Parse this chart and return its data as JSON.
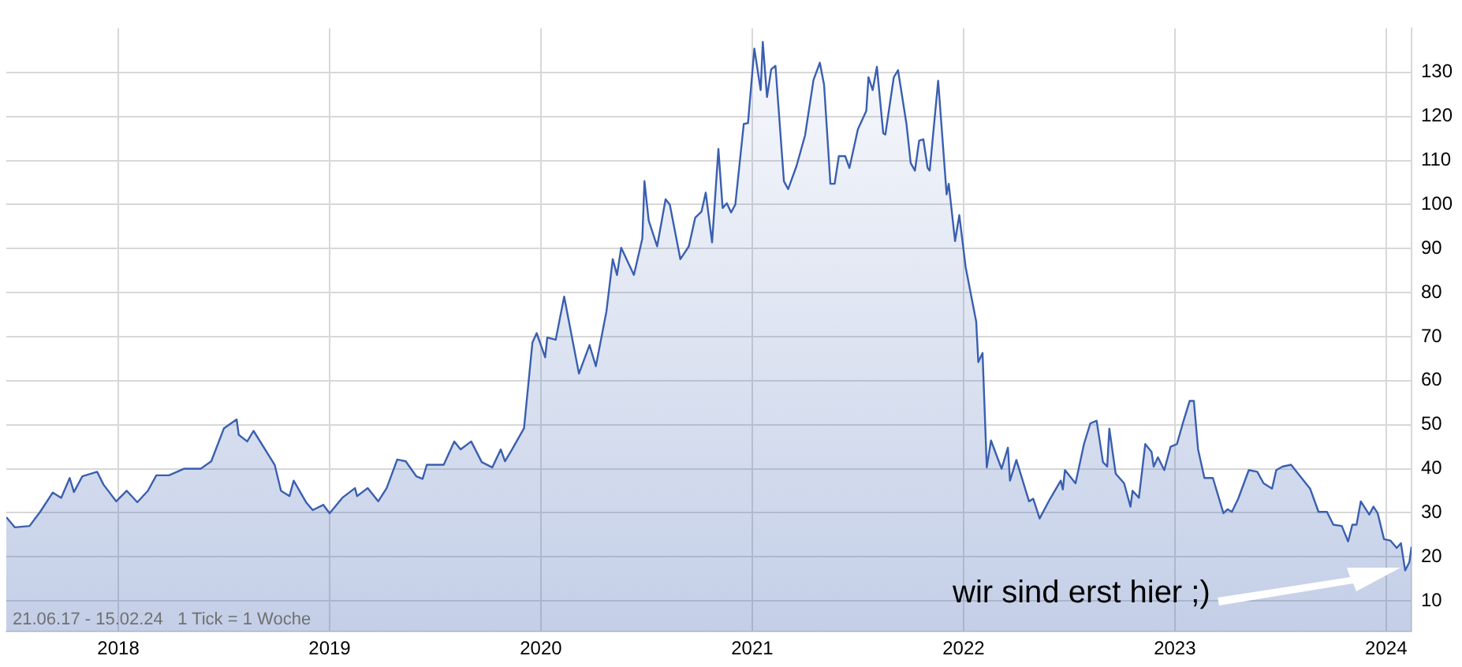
{
  "chart_data": {
    "type": "area",
    "xlim": [
      2017.47,
      2024.12
    ],
    "xticks": [
      2018,
      2019,
      2020,
      2021,
      2022,
      2023,
      2024
    ],
    "ylim": [
      3,
      140
    ],
    "yticks": [
      10,
      20,
      30,
      40,
      50,
      60,
      70,
      80,
      90,
      100,
      110,
      120,
      130
    ],
    "grid": true,
    "legend": false,
    "annotations": [
      "21.06.17 - 15.02.24   1 Tick = 1 Woche",
      "wir sind erst hier ;)"
    ],
    "series": [
      {
        "color": "#3a5fb0",
        "x": [
          2017.47,
          2017.51,
          2017.58,
          2017.63,
          2017.69,
          2017.73,
          2017.77,
          2017.79,
          2017.83,
          2017.9,
          2017.93,
          2017.99,
          2018.04,
          2018.09,
          2018.14,
          2018.18,
          2018.24,
          2018.31,
          2018.39,
          2018.44,
          2018.5,
          2018.56,
          2018.57,
          2018.61,
          2018.64,
          2018.74,
          2018.77,
          2018.81,
          2018.83,
          2018.89,
          2018.92,
          2018.97,
          2019.0,
          2019.06,
          2019.12,
          2019.13,
          2019.18,
          2019.23,
          2019.27,
          2019.32,
          2019.36,
          2019.41,
          2019.44,
          2019.46,
          2019.54,
          2019.59,
          2019.62,
          2019.67,
          2019.72,
          2019.77,
          2019.81,
          2019.83,
          2019.86,
          2019.92,
          2019.96,
          2019.98,
          2020.02,
          2020.03,
          2020.07,
          2020.11,
          2020.18,
          2020.23,
          2020.26,
          2020.31,
          2020.34,
          2020.36,
          2020.38,
          2020.44,
          2020.48,
          2020.49,
          2020.51,
          2020.55,
          2020.59,
          2020.61,
          2020.66,
          2020.7,
          2020.73,
          2020.76,
          2020.78,
          2020.81,
          2020.84,
          2020.86,
          2020.88,
          2020.9,
          2020.92,
          2020.96,
          2020.98,
          2021.01,
          2021.04,
          2021.05,
          2021.07,
          2021.09,
          2021.11,
          2021.15,
          2021.17,
          2021.21,
          2021.25,
          2021.29,
          2021.32,
          2021.34,
          2021.37,
          2021.39,
          2021.41,
          2021.44,
          2021.46,
          2021.5,
          2021.54,
          2021.55,
          2021.57,
          2021.59,
          2021.62,
          2021.63,
          2021.67,
          2021.69,
          2021.73,
          2021.75,
          2021.77,
          2021.79,
          2021.81,
          2021.83,
          2021.84,
          2021.88,
          2021.92,
          2021.93,
          2021.96,
          2021.98,
          2022.01,
          2022.06,
          2022.07,
          2022.09,
          2022.11,
          2022.13,
          2022.18,
          2022.21,
          2022.22,
          2022.25,
          2022.31,
          2022.33,
          2022.36,
          2022.41,
          2022.46,
          2022.47,
          2022.48,
          2022.53,
          2022.57,
          2022.6,
          2022.63,
          2022.66,
          2022.68,
          2022.69,
          2022.72,
          2022.76,
          2022.79,
          2022.8,
          2022.83,
          2022.86,
          2022.89,
          2022.9,
          2022.92,
          2022.95,
          2022.98,
          2023.01,
          2023.04,
          2023.07,
          2023.09,
          2023.11,
          2023.14,
          2023.18,
          2023.23,
          2023.25,
          2023.27,
          2023.3,
          2023.35,
          2023.39,
          2023.42,
          2023.46,
          2023.48,
          2023.51,
          2023.55,
          2023.59,
          2023.64,
          2023.68,
          2023.72,
          2023.75,
          2023.79,
          2023.82,
          2023.84,
          2023.86,
          2023.88,
          2023.92,
          2023.94,
          2023.96,
          2023.99,
          2024.02,
          2024.05,
          2024.07,
          2024.09,
          2024.11,
          2024.12
        ],
        "values": [
          29.0,
          26.7,
          27.0,
          30.2,
          34.6,
          33.4,
          37.9,
          34.7,
          38.3,
          39.3,
          36.4,
          32.6,
          35.0,
          32.4,
          35.0,
          38.5,
          38.5,
          40.0,
          40.0,
          41.7,
          49.2,
          51.2,
          47.7,
          46.2,
          48.6,
          40.9,
          35.0,
          33.8,
          37.3,
          32.3,
          30.6,
          31.8,
          29.9,
          33.4,
          35.6,
          33.8,
          35.6,
          32.6,
          35.6,
          42.1,
          41.7,
          38.3,
          37.7,
          40.9,
          40.9,
          46.2,
          44.4,
          46.2,
          41.5,
          40.3,
          44.4,
          41.7,
          44.1,
          49.2,
          68.7,
          70.8,
          65.3,
          69.8,
          69.3,
          79.1,
          61.6,
          68.1,
          63.3,
          75.7,
          87.6,
          84.0,
          90.2,
          84.0,
          92.3,
          105.3,
          96.4,
          90.5,
          101.2,
          100.0,
          87.6,
          90.5,
          97.0,
          98.4,
          102.7,
          91.4,
          112.6,
          99.2,
          100.3,
          98.2,
          100.0,
          118.3,
          118.5,
          135.4,
          126.0,
          136.9,
          124.4,
          130.7,
          131.5,
          105.3,
          103.5,
          108.8,
          115.7,
          128.3,
          132.2,
          127.2,
          104.7,
          104.7,
          111.0,
          111.0,
          108.3,
          117.1,
          121.3,
          128.9,
          126.0,
          131.3,
          116.2,
          115.9,
          128.9,
          130.5,
          118.3,
          109.4,
          107.7,
          114.5,
          114.8,
          108.3,
          107.7,
          128.1,
          102.3,
          104.7,
          91.7,
          97.6,
          85.8,
          73.4,
          64.2,
          66.3,
          40.3,
          46.4,
          40.0,
          44.8,
          37.3,
          42.0,
          32.6,
          33.2,
          28.7,
          33.2,
          37.3,
          35.3,
          39.7,
          36.7,
          45.6,
          50.3,
          50.9,
          41.5,
          40.5,
          49.1,
          38.9,
          36.7,
          31.4,
          35.0,
          33.4,
          45.6,
          43.8,
          40.5,
          42.6,
          39.7,
          45.0,
          45.6,
          50.7,
          55.4,
          55.4,
          44.4,
          37.9,
          37.9,
          29.9,
          30.8,
          30.2,
          33.2,
          39.7,
          39.3,
          36.7,
          35.5,
          39.7,
          40.5,
          40.9,
          38.5,
          35.5,
          30.2,
          30.2,
          27.3,
          27.0,
          23.5,
          27.3,
          27.3,
          32.6,
          29.6,
          31.4,
          29.9,
          24.0,
          23.7,
          22.0,
          23.1,
          16.9,
          18.8,
          22.3
        ]
      }
    ]
  }
}
